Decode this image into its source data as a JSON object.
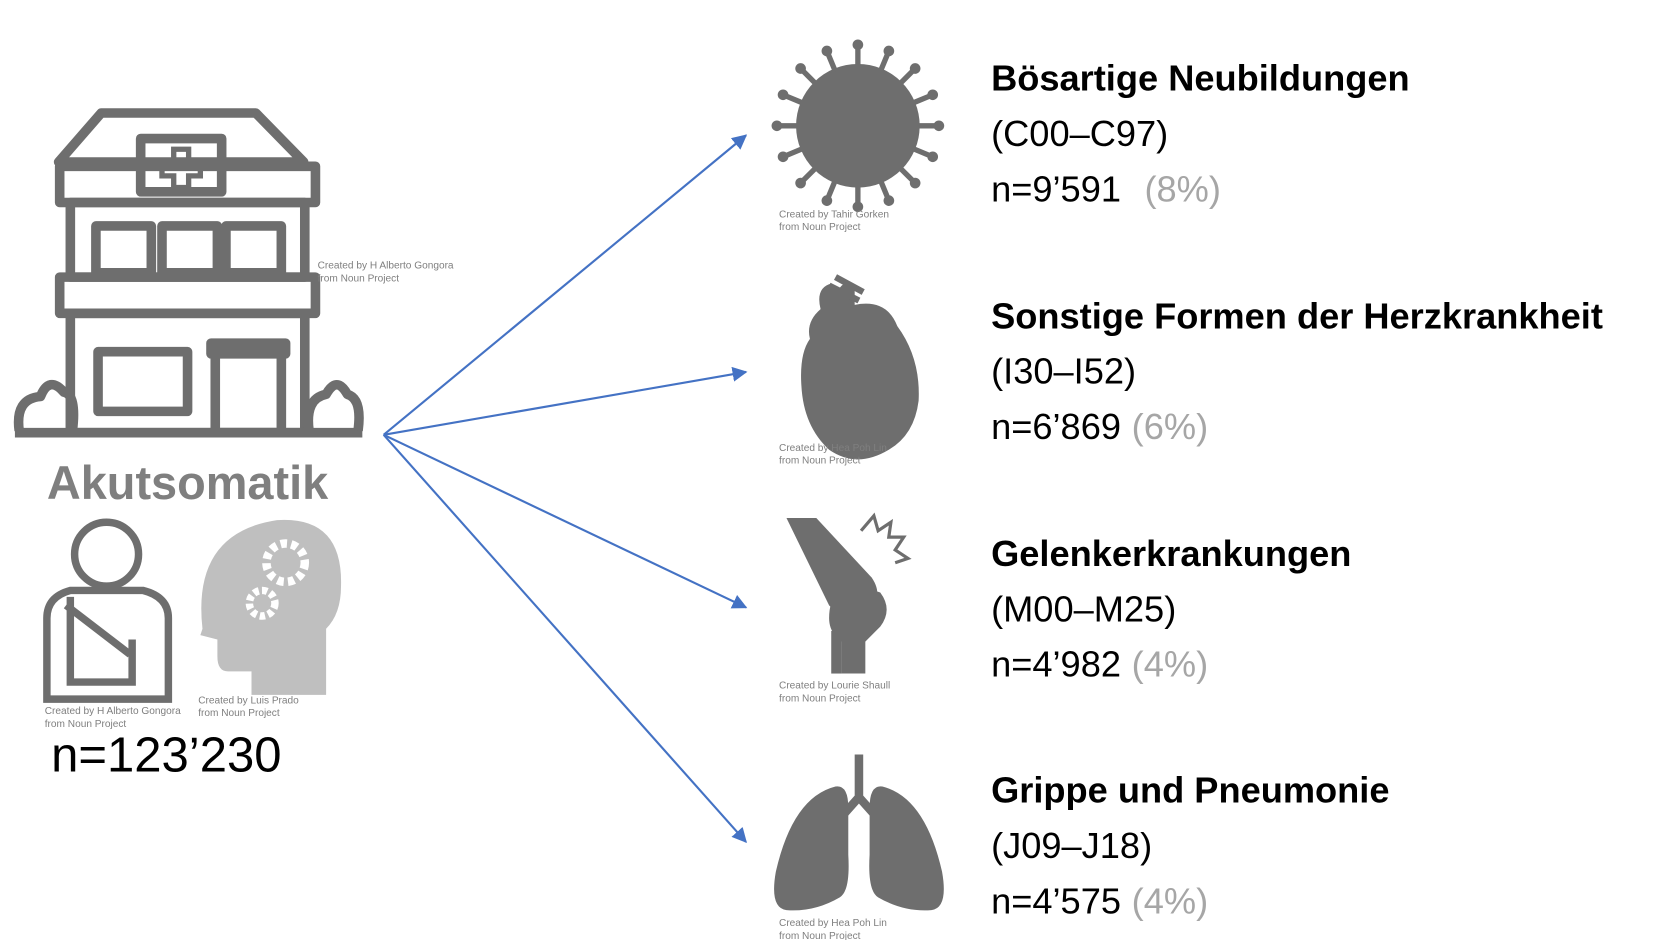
{
  "source": {
    "title": "Akutsomatik",
    "count": "n=123’230",
    "credits": [
      [
        "Created by H Alberto Gongora",
        "from Noun Project"
      ],
      [
        "Created by H Alberto Gongora",
        "from Noun Project"
      ],
      [
        "Created by Luis Prado",
        "from Noun Project"
      ]
    ]
  },
  "targets": [
    {
      "title": "Bösartige Neubildungen",
      "code": "(C00–C97)",
      "count": "n=9’591",
      "share": "(8%)",
      "credit": [
        "Created by Tahir Gorken",
        "from Noun Project"
      ]
    },
    {
      "title": "Sonstige Formen der Herzkrankheit",
      "code": "(I30–I52)",
      "count": "n=6’869",
      "share": "(6%)",
      "credit": [
        "Created by Hea Poh Lin",
        "from Noun Project"
      ]
    },
    {
      "title": "Gelenkerkrankungen",
      "code": "(M00–M25)",
      "count": "n=4’982",
      "share": "(4%)",
      "credit": [
        "Created by Lourie Shaull",
        "from Noun Project"
      ]
    },
    {
      "title": "Grippe und Pneumonie",
      "code": "(J09–J18)",
      "count": "n=4’575",
      "share": "(4%)",
      "credit": [
        "Created by Hea Poh Lin",
        "from Noun Project"
      ]
    }
  ]
}
